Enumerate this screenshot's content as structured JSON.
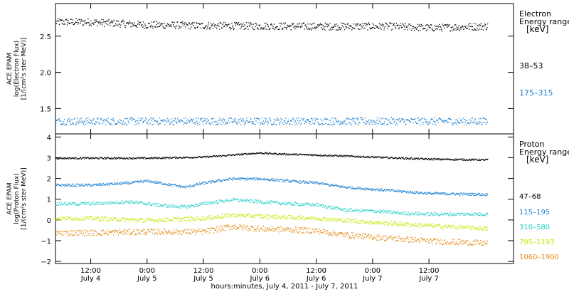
{
  "chart_data": [
    {
      "type": "scatter",
      "panel": "electron",
      "ylabel_lines": [
        "ACE EPAM",
        "log(Electron Flux)",
        "[1/(cm²s ster MeV)]"
      ],
      "yticks": [
        1.5,
        2.0,
        2.5
      ],
      "ytick_labels": [
        "1.5",
        "2.0",
        "2.5"
      ],
      "ylim": [
        1.15,
        2.95
      ],
      "legend_title_lines": [
        "Electron",
        "Energy ranges",
        "[keV]"
      ],
      "series": [
        {
          "name": "38–53",
          "color": "#000000",
          "base": 2.64,
          "noise": 0.05,
          "trend": [
            [
              0,
              2.7
            ],
            [
              12,
              2.66
            ],
            [
              24,
              2.65
            ],
            [
              48,
              2.64
            ],
            [
              64,
              2.64
            ],
            [
              72,
              2.62
            ],
            [
              84,
              2.64
            ]
          ]
        },
        {
          "name": "175–315",
          "color": "#1a7fd0",
          "base": 1.33,
          "noise": 0.05,
          "trend": [
            [
              0,
              1.33
            ],
            [
              84,
              1.33
            ]
          ]
        }
      ]
    },
    {
      "type": "scatter",
      "panel": "proton",
      "ylabel_lines": [
        "ACE EPAM",
        "log(Proton Flux)",
        "[1/(cm²s ster MeV)]"
      ],
      "yticks": [
        -2,
        -1,
        0,
        1,
        2,
        3,
        4
      ],
      "ytick_labels": [
        "−2",
        "−1",
        "0",
        "1",
        "2",
        "3",
        "4"
      ],
      "ylim": [
        -2.1,
        4.15
      ],
      "legend_title_lines": [
        "Proton",
        "Energy ranges",
        "[keV]"
      ],
      "series": [
        {
          "name": "47–68",
          "color": "#000000",
          "noise": 0.04,
          "trend": [
            [
              0,
              3.0
            ],
            [
              12,
              3.0
            ],
            [
              24,
              3.05
            ],
            [
              30,
              3.15
            ],
            [
              36,
              3.25
            ],
            [
              40,
              3.2
            ],
            [
              48,
              3.15
            ],
            [
              60,
              3.05
            ],
            [
              72,
              2.95
            ],
            [
              84,
              2.92
            ]
          ]
        },
        {
          "name": "115–195",
          "color": "#1a7fd0",
          "noise": 0.06,
          "trend": [
            [
              0,
              1.7
            ],
            [
              8,
              1.8
            ],
            [
              12,
              1.9
            ],
            [
              16,
              1.75
            ],
            [
              20,
              1.6
            ],
            [
              24,
              1.8
            ],
            [
              30,
              2.0
            ],
            [
              36,
              2.0
            ],
            [
              42,
              1.9
            ],
            [
              48,
              1.8
            ],
            [
              54,
              1.6
            ],
            [
              60,
              1.5
            ],
            [
              66,
              1.4
            ],
            [
              72,
              1.3
            ],
            [
              84,
              1.25
            ]
          ]
        },
        {
          "name": "310–580",
          "color": "#28d0c8",
          "noise": 0.08,
          "trend": [
            [
              0,
              0.8
            ],
            [
              8,
              0.9
            ],
            [
              12,
              0.8
            ],
            [
              16,
              0.7
            ],
            [
              20,
              0.65
            ],
            [
              24,
              0.8
            ],
            [
              30,
              1.0
            ],
            [
              36,
              0.9
            ],
            [
              42,
              0.8
            ],
            [
              48,
              0.75
            ],
            [
              54,
              0.5
            ],
            [
              60,
              0.45
            ],
            [
              66,
              0.35
            ],
            [
              72,
              0.3
            ],
            [
              84,
              0.3
            ]
          ]
        },
        {
          "name": "795–1193",
          "color": "#c8e600",
          "noise": 0.1,
          "trend": [
            [
              0,
              0.1
            ],
            [
              12,
              0.0
            ],
            [
              24,
              0.1
            ],
            [
              30,
              0.25
            ],
            [
              36,
              0.2
            ],
            [
              48,
              0.1
            ],
            [
              54,
              0.0
            ],
            [
              60,
              -0.1
            ],
            [
              72,
              -0.25
            ],
            [
              84,
              -0.4
            ]
          ]
        },
        {
          "name": "1060–1900",
          "color": "#e68a14",
          "noise": 0.14,
          "trend": [
            [
              0,
              -0.6
            ],
            [
              12,
              -0.55
            ],
            [
              24,
              -0.55
            ],
            [
              30,
              -0.3
            ],
            [
              36,
              -0.4
            ],
            [
              48,
              -0.5
            ],
            [
              54,
              -0.7
            ],
            [
              60,
              -0.8
            ],
            [
              66,
              -0.9
            ],
            [
              72,
              -1.0
            ],
            [
              84,
              -1.1
            ]
          ]
        }
      ]
    }
  ],
  "x_axis": {
    "range_hours": [
      -7.5,
      90
    ],
    "data_span_hours": [
      -7.5,
      84.5
    ],
    "ticks": [
      {
        "h": 0,
        "time": "12:00",
        "date": "July 4"
      },
      {
        "h": 12,
        "time": "0:00",
        "date": "July 5"
      },
      {
        "h": 24,
        "time": "12:00",
        "date": "July 5"
      },
      {
        "h": 36,
        "time": "0:00",
        "date": "July 6"
      },
      {
        "h": 48,
        "time": "12:00",
        "date": "July 6"
      },
      {
        "h": 60,
        "time": "0:00",
        "date": "July 7"
      },
      {
        "h": 72,
        "time": "12:00",
        "date": "July 7"
      }
    ],
    "xlabel": "hours:minutes, July  4, 2011 - July  7, 2011"
  },
  "grid": false
}
